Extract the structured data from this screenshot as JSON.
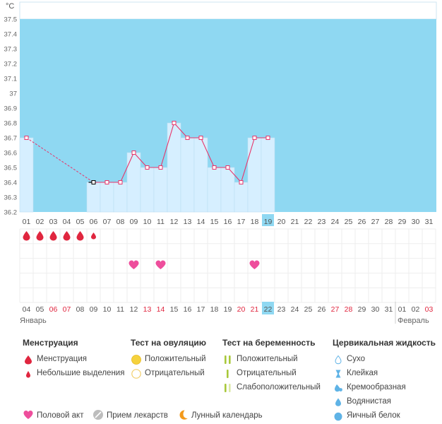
{
  "chart_data": {
    "type": "line",
    "unit_label": "°C",
    "ylim": [
      36.2,
      37.5
    ],
    "y_ticks": [
      "36.2",
      "36.3",
      "36.4",
      "36.5",
      "36.6",
      "36.7",
      "36.8",
      "36.9",
      "37",
      "37.1",
      "37.2",
      "37.3",
      "37.4",
      "37.5"
    ],
    "cycle_days": [
      "01",
      "02",
      "03",
      "04",
      "05",
      "06",
      "07",
      "08",
      "09",
      "10",
      "11",
      "12",
      "13",
      "14",
      "15",
      "16",
      "17",
      "18",
      "19",
      "20",
      "21",
      "22",
      "23",
      "24",
      "25",
      "26",
      "27",
      "28",
      "29",
      "30",
      "31"
    ],
    "temperatures": [
      36.7,
      null,
      null,
      null,
      null,
      36.4,
      36.4,
      36.4,
      36.6,
      36.5,
      36.5,
      36.8,
      36.7,
      36.7,
      36.5,
      36.5,
      36.4,
      36.7,
      36.7,
      null,
      null,
      null,
      null,
      null,
      null,
      null,
      null,
      null,
      null,
      null,
      null
    ],
    "dashed_segment": [
      0,
      5
    ],
    "first_point_marker": 5,
    "current_day_index": 18,
    "menstruation": [
      "full",
      "full",
      "full",
      "full",
      "full",
      "light"
    ],
    "intercourse_days": [
      8,
      10,
      17
    ],
    "date_row": [
      {
        "label": "04",
        "red": false
      },
      {
        "label": "05",
        "red": false
      },
      {
        "label": "06",
        "red": true
      },
      {
        "label": "07",
        "red": true
      },
      {
        "label": "08",
        "red": false
      },
      {
        "label": "09",
        "red": false
      },
      {
        "label": "10",
        "red": false
      },
      {
        "label": "11",
        "red": false
      },
      {
        "label": "12",
        "red": false
      },
      {
        "label": "13",
        "red": true
      },
      {
        "label": "14",
        "red": true
      },
      {
        "label": "15",
        "red": false
      },
      {
        "label": "16",
        "red": false
      },
      {
        "label": "17",
        "red": false
      },
      {
        "label": "18",
        "red": false
      },
      {
        "label": "19",
        "red": false
      },
      {
        "label": "20",
        "red": true
      },
      {
        "label": "21",
        "red": true
      },
      {
        "label": "22",
        "red": false
      },
      {
        "label": "23",
        "red": false
      },
      {
        "label": "24",
        "red": false
      },
      {
        "label": "25",
        "red": false
      },
      {
        "label": "26",
        "red": false
      },
      {
        "label": "27",
        "red": true
      },
      {
        "label": "28",
        "red": true
      },
      {
        "label": "29",
        "red": false
      },
      {
        "label": "30",
        "red": false
      },
      {
        "label": "31",
        "red": false
      },
      {
        "label": "01",
        "red": false
      },
      {
        "label": "02",
        "red": false
      },
      {
        "label": "03",
        "red": true
      }
    ],
    "month_labels": {
      "first": "Январь",
      "second": "Февраль"
    }
  },
  "colors": {
    "background": "#8fd8f2",
    "bar": "#d6efff",
    "line": "#e8346a",
    "red_date": "#e0263f",
    "highlight": "#8fd8f2"
  },
  "legend": {
    "menstruation": {
      "title": "Менструация",
      "items": [
        "Менструация",
        "Небольшие выделения"
      ]
    },
    "ovulation": {
      "title": "Тест на овуляцию",
      "items": [
        "Положительный",
        "Отрицательный"
      ]
    },
    "pregnancy": {
      "title": "Тест на беременность",
      "items": [
        "Положительный",
        "Отрицательный",
        "Слабоположительный"
      ]
    },
    "cervical": {
      "title": "Цервикальная жидкость",
      "items": [
        "Сухо",
        "Клейкая",
        "Кремообразная",
        "Водянистая",
        "Яичный белок"
      ]
    }
  },
  "bottom": {
    "intercourse": "Половой акт",
    "medicine": "Прием лекарств",
    "lunar": "Лунный календарь"
  }
}
